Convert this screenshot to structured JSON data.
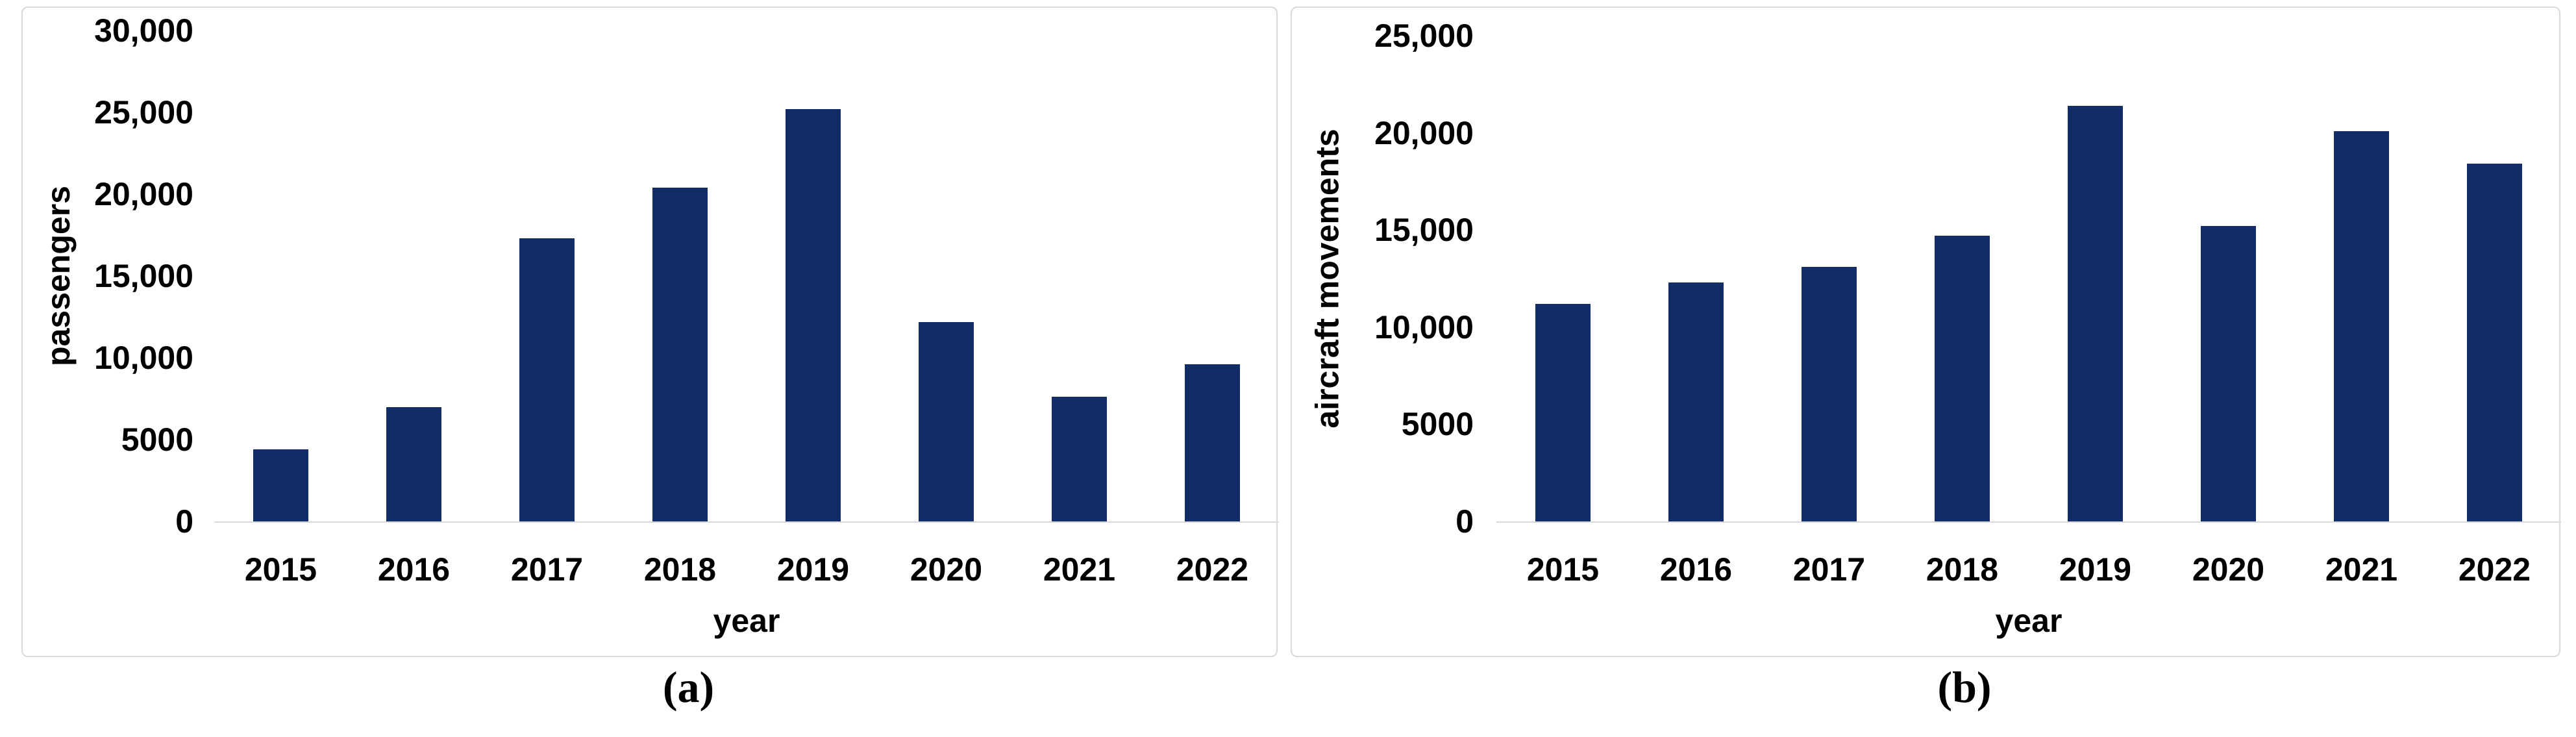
{
  "figure": {
    "panels": [
      {
        "caption": "(a)"
      },
      {
        "caption": "(b)"
      }
    ]
  },
  "colors": {
    "bar": "#112c66",
    "panel_border": "#d9d9d9",
    "axis_line": "#d9d9d9",
    "text": "#000000"
  },
  "chart_data": [
    {
      "type": "bar",
      "panel": "a",
      "title": "",
      "xlabel": "year",
      "ylabel": "passengers",
      "categories": [
        "2015",
        "2016",
        "2017",
        "2018",
        "2019",
        "2020",
        "2021",
        "2022"
      ],
      "values": [
        4400,
        7000,
        17300,
        20400,
        25200,
        12200,
        7600,
        9600
      ],
      "ylim": [
        0,
        30000
      ],
      "yticks": [
        0,
        5000,
        10000,
        15000,
        20000,
        25000,
        30000
      ],
      "ytick_labels": [
        "0",
        "5000",
        "10,000",
        "15,000",
        "20,000",
        "25,000",
        "30,000"
      ],
      "grid": false,
      "legend": null,
      "bar_color": "#112c66"
    },
    {
      "type": "bar",
      "panel": "b",
      "title": "",
      "xlabel": "year",
      "ylabel": "aircraft movements",
      "categories": [
        "2015",
        "2016",
        "2017",
        "2018",
        "2019",
        "2020",
        "2021",
        "2022"
      ],
      "values": [
        11200,
        12300,
        13100,
        14700,
        21400,
        15200,
        20100,
        18400
      ],
      "ylim": [
        0,
        25000
      ],
      "yticks": [
        0,
        5000,
        10000,
        15000,
        20000,
        25000
      ],
      "ytick_labels": [
        "0",
        "5000",
        "10,000",
        "15,000",
        "20,000",
        "25,000"
      ],
      "grid": false,
      "legend": null,
      "bar_color": "#112c66"
    }
  ]
}
